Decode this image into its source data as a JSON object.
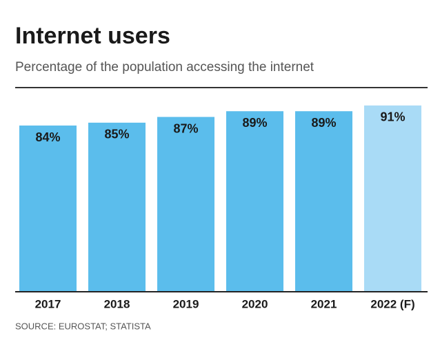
{
  "chart_data": {
    "type": "bar",
    "title": "Internet users",
    "subtitle": "Percentage of the population accessing the internet",
    "source": "SOURCE: EUROSTAT; STATISTA",
    "categories": [
      "2017",
      "2018",
      "2019",
      "2020",
      "2021",
      "2022 (F)"
    ],
    "values": [
      84,
      85,
      87,
      89,
      89,
      91
    ],
    "value_labels": [
      "84%",
      "85%",
      "87%",
      "89%",
      "89%",
      "91%"
    ],
    "colors": [
      "#5bbdec",
      "#5bbdec",
      "#5bbdec",
      "#5bbdec",
      "#5bbdec",
      "#a9dbf6"
    ],
    "ylim": [
      26,
      97
    ]
  }
}
